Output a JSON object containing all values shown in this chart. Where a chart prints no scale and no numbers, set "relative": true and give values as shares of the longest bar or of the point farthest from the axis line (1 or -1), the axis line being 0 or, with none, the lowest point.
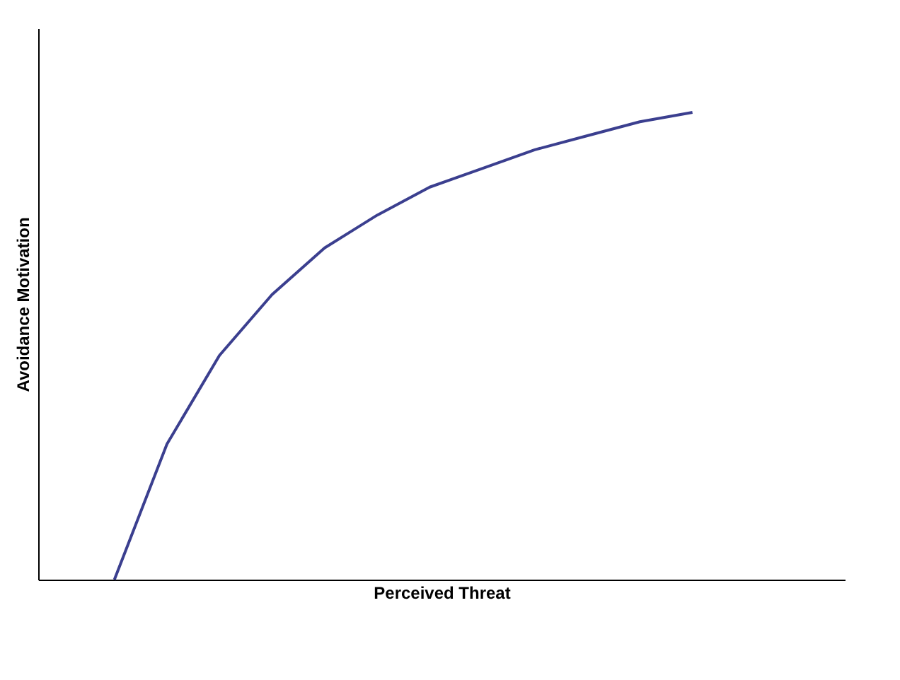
{
  "chart_data": {
    "type": "line",
    "relative": true,
    "xlabel": "Perceived Threat",
    "ylabel": "Avoidance Motivation",
    "categories": [
      null,
      null,
      null,
      null,
      null,
      null,
      null,
      null,
      null,
      null,
      null,
      null
    ],
    "series": [
      {
        "color": "#3b3f8f",
        "values": [
          0,
          0.29,
          0.48,
          0.61,
          0.71,
          0.78,
          0.84,
          0.88,
          0.92,
          0.95,
          0.98,
          1
        ]
      }
    ],
    "grid": false,
    "marker": "none",
    "line_style": "solid"
  }
}
